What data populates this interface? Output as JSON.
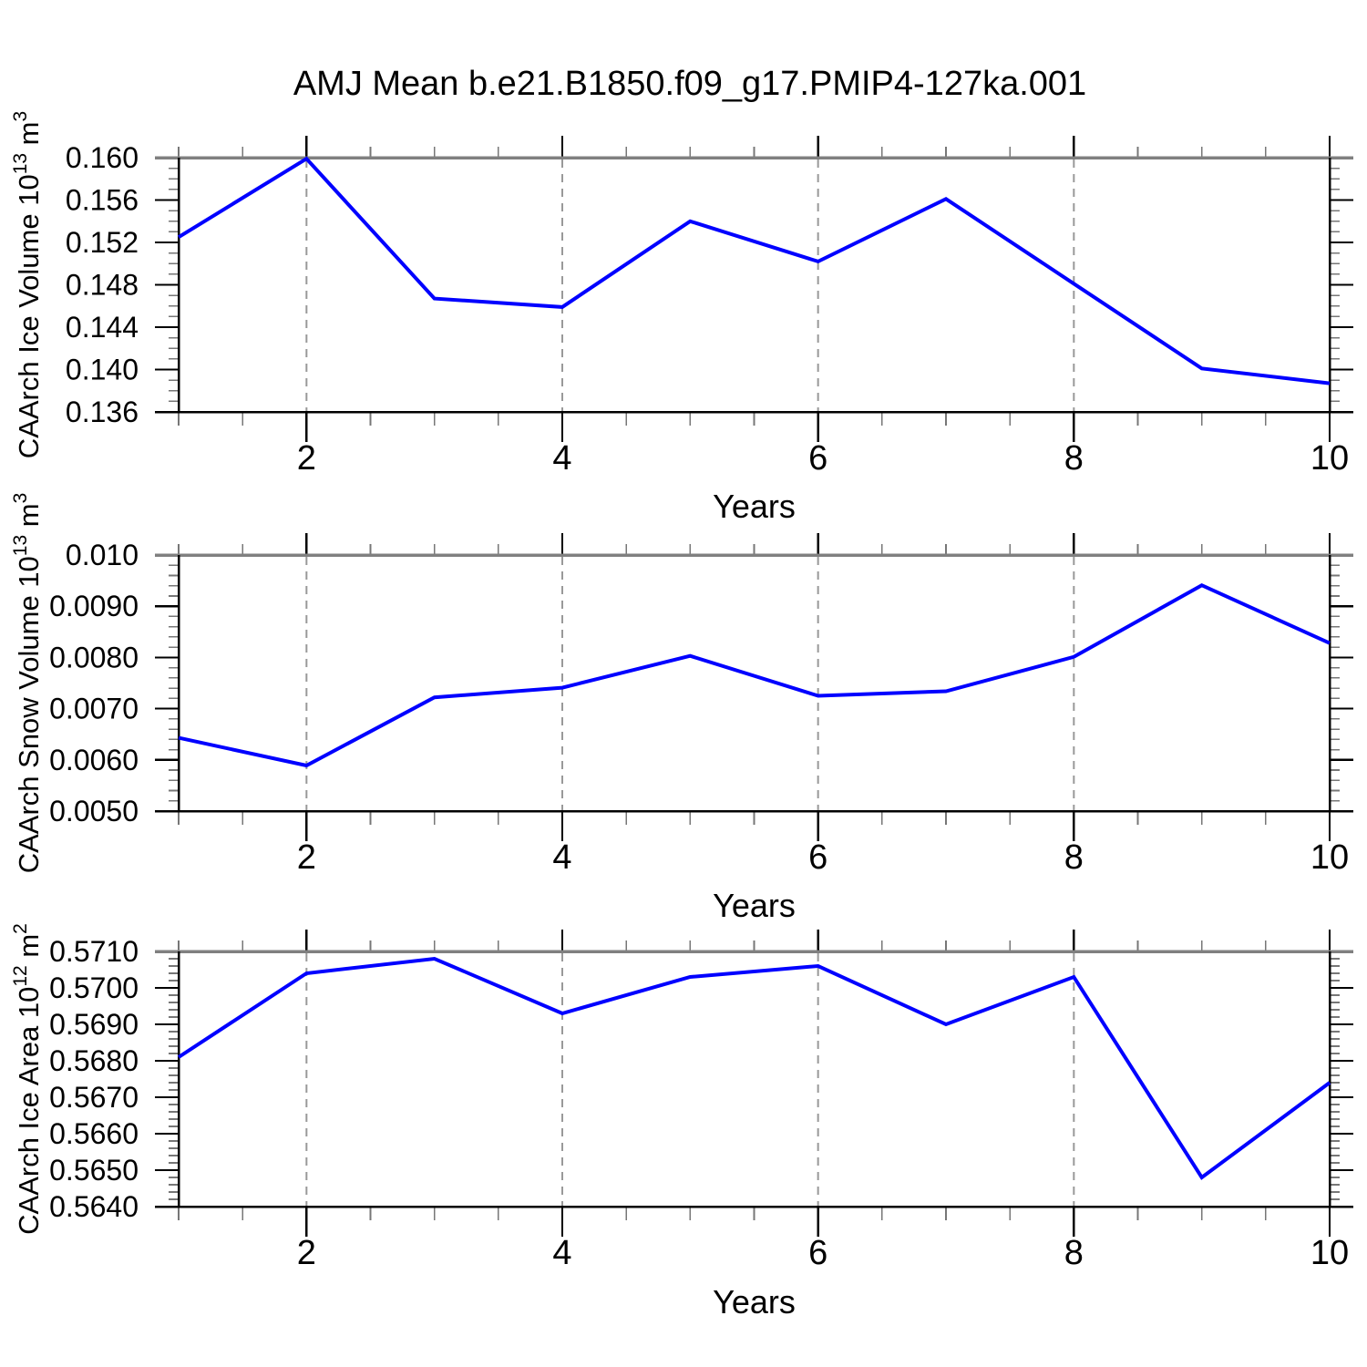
{
  "title": "AMJ Mean b.e21.B1850.f09_g17.PMIP4-127ka.001",
  "colors": {
    "line": "#0000ff",
    "grid_dash": "#999999",
    "frame_top": "#808080",
    "axis": "#000000",
    "minor_tick": "#777777"
  },
  "x_axis": {
    "label": "Years",
    "xlim": [
      1,
      10
    ],
    "major_ticks": [
      2,
      4,
      6,
      8,
      10
    ],
    "major_tick_labels": [
      "2",
      "4",
      "6",
      "8",
      "10"
    ],
    "minor_step": 0.5,
    "grid_years": [
      2,
      4,
      6,
      8
    ]
  },
  "chart_data": [
    {
      "type": "line",
      "name": "ice-volume",
      "ylabel_parts": {
        "text": "CAArch Ice Volume 10",
        "sup1": "13",
        "unit": " m",
        "sup2": "3"
      },
      "xlabel": "Years",
      "x": [
        1,
        2,
        3,
        4,
        5,
        6,
        7,
        8,
        9,
        10
      ],
      "values": [
        0.1525,
        0.1599,
        0.1467,
        0.1459,
        0.154,
        0.1502,
        0.1561,
        0.1481,
        0.1401,
        0.1387
      ],
      "ylim": [
        0.136,
        0.16
      ],
      "yticks": [
        {
          "v": 0.16,
          "label": "0.160"
        },
        {
          "v": 0.156,
          "label": "0.156"
        },
        {
          "v": 0.152,
          "label": "0.152"
        },
        {
          "v": 0.148,
          "label": "0.148"
        },
        {
          "v": 0.144,
          "label": "0.144"
        },
        {
          "v": 0.14,
          "label": "0.140"
        },
        {
          "v": 0.136,
          "label": "0.136"
        }
      ],
      "y_minor_step": 0.001,
      "grid": "vertical-dashed-at-even-years"
    },
    {
      "type": "line",
      "name": "snow-volume",
      "ylabel_parts": {
        "text": "CAArch Snow Volume 10",
        "sup1": "13",
        "unit": " m",
        "sup2": "3"
      },
      "xlabel": "Years",
      "x": [
        1,
        2,
        3,
        4,
        5,
        6,
        7,
        8,
        9,
        10
      ],
      "values": [
        0.00643,
        0.00589,
        0.00722,
        0.00741,
        0.00803,
        0.00725,
        0.00734,
        0.00801,
        0.00941,
        0.00828
      ],
      "ylim": [
        0.005,
        0.01
      ],
      "yticks": [
        {
          "v": 0.01,
          "label": "0.010"
        },
        {
          "v": 0.009,
          "label": "0.0090"
        },
        {
          "v": 0.008,
          "label": "0.0080"
        },
        {
          "v": 0.007,
          "label": "0.0070"
        },
        {
          "v": 0.006,
          "label": "0.0060"
        },
        {
          "v": 0.005,
          "label": "0.0050"
        }
      ],
      "y_minor_step": 0.0002,
      "grid": "vertical-dashed-at-even-years"
    },
    {
      "type": "line",
      "name": "ice-area",
      "ylabel_parts": {
        "text": "CAArch Ice Area 10",
        "sup1": "12",
        "unit": " m",
        "sup2": "2"
      },
      "xlabel": "Years",
      "x": [
        1,
        2,
        3,
        4,
        5,
        6,
        7,
        8,
        9,
        10
      ],
      "values": [
        0.5681,
        0.5704,
        0.5708,
        0.5693,
        0.5703,
        0.5706,
        0.569,
        0.5703,
        0.5648,
        0.5674
      ],
      "ylim": [
        0.564,
        0.571
      ],
      "yticks": [
        {
          "v": 0.571,
          "label": "0.5710"
        },
        {
          "v": 0.57,
          "label": "0.5700"
        },
        {
          "v": 0.569,
          "label": "0.5690"
        },
        {
          "v": 0.568,
          "label": "0.5680"
        },
        {
          "v": 0.567,
          "label": "0.5670"
        },
        {
          "v": 0.566,
          "label": "0.5660"
        },
        {
          "v": 0.565,
          "label": "0.5650"
        },
        {
          "v": 0.564,
          "label": "0.5640"
        }
      ],
      "y_minor_step": 0.0002,
      "grid": "vertical-dashed-at-even-years"
    }
  ]
}
